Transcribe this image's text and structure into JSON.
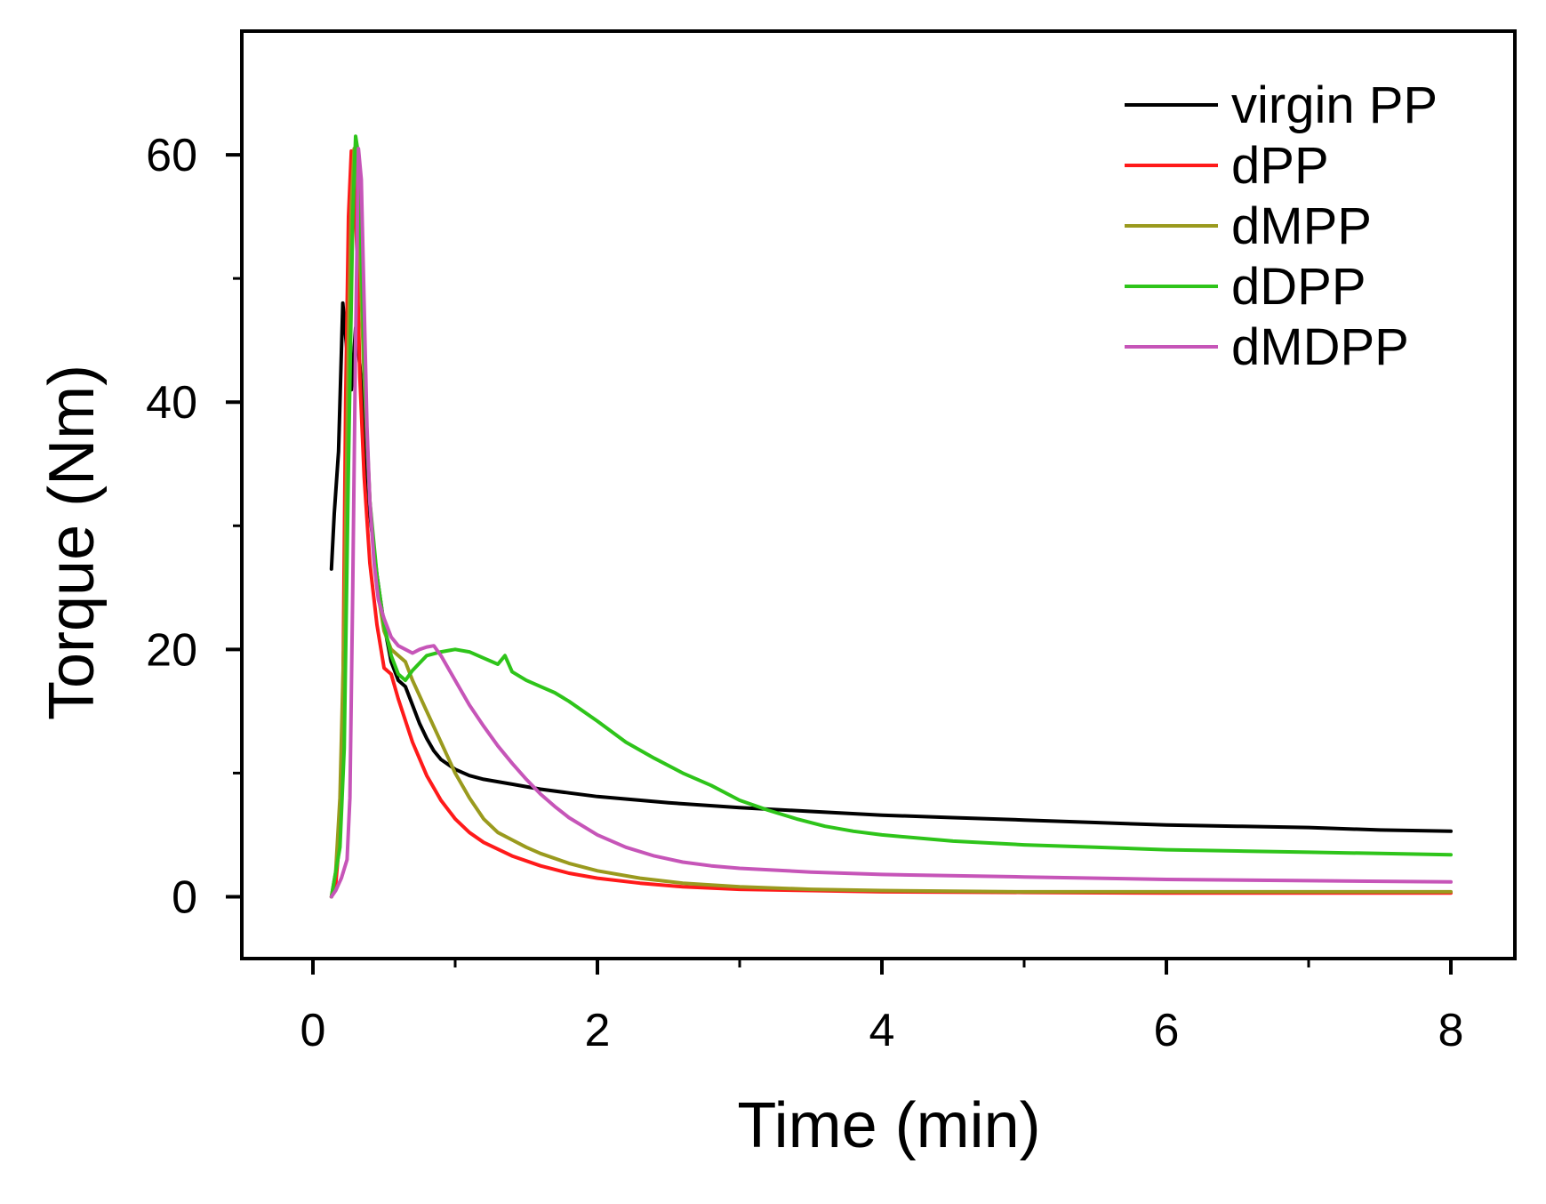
{
  "chart_data": {
    "type": "line",
    "title": "",
    "xlabel": "Time (min)",
    "ylabel": "Torque (Nm)",
    "xlim": [
      -0.5,
      8.45
    ],
    "ylim": [
      -5,
      70
    ],
    "xticks": [
      0,
      2,
      4,
      6,
      8
    ],
    "xtick_labels": [
      "0",
      "2",
      "4",
      "6",
      "8"
    ],
    "xminor": [
      1,
      3,
      5,
      7
    ],
    "yticks": [
      0,
      20,
      40,
      60
    ],
    "ytick_labels": [
      "0",
      "20",
      "40",
      "60"
    ],
    "yminor": [
      10,
      30,
      50
    ],
    "grid": false,
    "legend_position": "top-right",
    "series": [
      {
        "name": "virgin PP",
        "color": "#000000",
        "points": [
          [
            0.13,
            26.5
          ],
          [
            0.15,
            31
          ],
          [
            0.18,
            36
          ],
          [
            0.21,
            48
          ],
          [
            0.24,
            44
          ],
          [
            0.27,
            41
          ],
          [
            0.3,
            46
          ],
          [
            0.33,
            43
          ],
          [
            0.36,
            38
          ],
          [
            0.4,
            31
          ],
          [
            0.45,
            26
          ],
          [
            0.5,
            22
          ],
          [
            0.55,
            19
          ],
          [
            0.6,
            17.5
          ],
          [
            0.65,
            17
          ],
          [
            0.7,
            15.5
          ],
          [
            0.75,
            14
          ],
          [
            0.8,
            12.8
          ],
          [
            0.85,
            11.8
          ],
          [
            0.9,
            11.1
          ],
          [
            1.0,
            10.3
          ],
          [
            1.1,
            9.8
          ],
          [
            1.2,
            9.5
          ],
          [
            1.4,
            9.1
          ],
          [
            1.6,
            8.7
          ],
          [
            1.8,
            8.4
          ],
          [
            2.0,
            8.1
          ],
          [
            2.5,
            7.6
          ],
          [
            3.0,
            7.2
          ],
          [
            3.5,
            6.9
          ],
          [
            4.0,
            6.6
          ],
          [
            4.5,
            6.4
          ],
          [
            5.0,
            6.2
          ],
          [
            5.5,
            6.0
          ],
          [
            6.0,
            5.8
          ],
          [
            6.5,
            5.7
          ],
          [
            7.0,
            5.6
          ],
          [
            7.5,
            5.4
          ],
          [
            8.0,
            5.3
          ]
        ]
      },
      {
        "name": "dPP",
        "color": "#ff1a1a",
        "points": [
          [
            0.13,
            0
          ],
          [
            0.16,
            1
          ],
          [
            0.19,
            5
          ],
          [
            0.21,
            15
          ],
          [
            0.23,
            40
          ],
          [
            0.25,
            55
          ],
          [
            0.27,
            60.3
          ],
          [
            0.29,
            58
          ],
          [
            0.31,
            52
          ],
          [
            0.33,
            42
          ],
          [
            0.36,
            34
          ],
          [
            0.4,
            27
          ],
          [
            0.45,
            22
          ],
          [
            0.5,
            18.5
          ],
          [
            0.55,
            18
          ],
          [
            0.6,
            16
          ],
          [
            0.7,
            12.5
          ],
          [
            0.8,
            9.8
          ],
          [
            0.9,
            7.8
          ],
          [
            1.0,
            6.3
          ],
          [
            1.1,
            5.2
          ],
          [
            1.2,
            4.4
          ],
          [
            1.4,
            3.3
          ],
          [
            1.6,
            2.5
          ],
          [
            1.8,
            1.9
          ],
          [
            2.0,
            1.5
          ],
          [
            2.3,
            1.1
          ],
          [
            2.6,
            0.8
          ],
          [
            3.0,
            0.6
          ],
          [
            3.5,
            0.5
          ],
          [
            4.0,
            0.4
          ],
          [
            5.0,
            0.35
          ],
          [
            6.0,
            0.3
          ],
          [
            7.0,
            0.3
          ],
          [
            8.0,
            0.3
          ]
        ]
      },
      {
        "name": "dMPP",
        "color": "#9a9a1e",
        "points": [
          [
            0.13,
            0
          ],
          [
            0.16,
            2
          ],
          [
            0.19,
            8
          ],
          [
            0.22,
            22
          ],
          [
            0.25,
            45
          ],
          [
            0.27,
            56
          ],
          [
            0.29,
            60.5
          ],
          [
            0.31,
            59
          ],
          [
            0.33,
            52
          ],
          [
            0.36,
            42
          ],
          [
            0.4,
            32
          ],
          [
            0.45,
            25
          ],
          [
            0.5,
            21.5
          ],
          [
            0.55,
            20
          ],
          [
            0.6,
            19.5
          ],
          [
            0.65,
            19
          ],
          [
            0.7,
            17.5
          ],
          [
            0.8,
            15
          ],
          [
            0.9,
            12.5
          ],
          [
            1.0,
            10
          ],
          [
            1.1,
            8
          ],
          [
            1.2,
            6.3
          ],
          [
            1.3,
            5.2
          ],
          [
            1.4,
            4.6
          ],
          [
            1.5,
            4
          ],
          [
            1.6,
            3.5
          ],
          [
            1.8,
            2.7
          ],
          [
            2.0,
            2.1
          ],
          [
            2.3,
            1.5
          ],
          [
            2.6,
            1.1
          ],
          [
            3.0,
            0.8
          ],
          [
            3.5,
            0.6
          ],
          [
            4.0,
            0.5
          ],
          [
            5.0,
            0.4
          ],
          [
            6.0,
            0.4
          ],
          [
            7.0,
            0.4
          ],
          [
            8.0,
            0.4
          ]
        ]
      },
      {
        "name": "dDPP",
        "color": "#2ec41a",
        "points": [
          [
            0.13,
            0
          ],
          [
            0.16,
            2
          ],
          [
            0.19,
            4
          ],
          [
            0.22,
            12
          ],
          [
            0.25,
            35
          ],
          [
            0.28,
            55
          ],
          [
            0.3,
            61.5
          ],
          [
            0.32,
            60
          ],
          [
            0.34,
            52
          ],
          [
            0.37,
            40
          ],
          [
            0.4,
            32
          ],
          [
            0.45,
            26
          ],
          [
            0.5,
            22
          ],
          [
            0.55,
            19.5
          ],
          [
            0.6,
            18
          ],
          [
            0.65,
            17.5
          ],
          [
            0.7,
            18.3
          ],
          [
            0.8,
            19.5
          ],
          [
            0.9,
            19.8
          ],
          [
            1.0,
            20
          ],
          [
            1.1,
            19.8
          ],
          [
            1.2,
            19.3
          ],
          [
            1.3,
            18.8
          ],
          [
            1.35,
            19.5
          ],
          [
            1.4,
            18.2
          ],
          [
            1.5,
            17.5
          ],
          [
            1.6,
            17
          ],
          [
            1.7,
            16.5
          ],
          [
            1.8,
            15.8
          ],
          [
            2.0,
            14.2
          ],
          [
            2.2,
            12.5
          ],
          [
            2.4,
            11.2
          ],
          [
            2.6,
            10
          ],
          [
            2.8,
            9
          ],
          [
            3.0,
            7.8
          ],
          [
            3.2,
            7
          ],
          [
            3.4,
            6.3
          ],
          [
            3.6,
            5.7
          ],
          [
            3.8,
            5.3
          ],
          [
            4.0,
            5
          ],
          [
            4.5,
            4.5
          ],
          [
            5.0,
            4.2
          ],
          [
            5.5,
            4
          ],
          [
            6.0,
            3.8
          ],
          [
            6.5,
            3.7
          ],
          [
            7.0,
            3.6
          ],
          [
            7.5,
            3.5
          ],
          [
            8.0,
            3.4
          ]
        ]
      },
      {
        "name": "dMDPP",
        "color": "#c655b8",
        "points": [
          [
            0.13,
            0
          ],
          [
            0.16,
            0.5
          ],
          [
            0.2,
            1.5
          ],
          [
            0.24,
            3
          ],
          [
            0.26,
            8
          ],
          [
            0.28,
            25
          ],
          [
            0.3,
            45
          ],
          [
            0.32,
            60.5
          ],
          [
            0.34,
            58
          ],
          [
            0.36,
            48
          ],
          [
            0.38,
            38
          ],
          [
            0.4,
            32
          ],
          [
            0.43,
            27
          ],
          [
            0.46,
            24
          ],
          [
            0.5,
            22.5
          ],
          [
            0.55,
            21
          ],
          [
            0.6,
            20.3
          ],
          [
            0.65,
            20
          ],
          [
            0.7,
            19.7
          ],
          [
            0.75,
            20
          ],
          [
            0.8,
            20.2
          ],
          [
            0.85,
            20.3
          ],
          [
            0.9,
            19.5
          ],
          [
            1.0,
            17.5
          ],
          [
            1.1,
            15.5
          ],
          [
            1.2,
            13.8
          ],
          [
            1.3,
            12.2
          ],
          [
            1.4,
            10.8
          ],
          [
            1.5,
            9.5
          ],
          [
            1.6,
            8.3
          ],
          [
            1.7,
            7.3
          ],
          [
            1.8,
            6.4
          ],
          [
            2.0,
            5
          ],
          [
            2.2,
            4
          ],
          [
            2.4,
            3.3
          ],
          [
            2.6,
            2.8
          ],
          [
            2.8,
            2.5
          ],
          [
            3.0,
            2.3
          ],
          [
            3.5,
            2
          ],
          [
            4.0,
            1.8
          ],
          [
            5.0,
            1.6
          ],
          [
            6.0,
            1.4
          ],
          [
            7.0,
            1.3
          ],
          [
            8.0,
            1.2
          ]
        ]
      }
    ]
  }
}
